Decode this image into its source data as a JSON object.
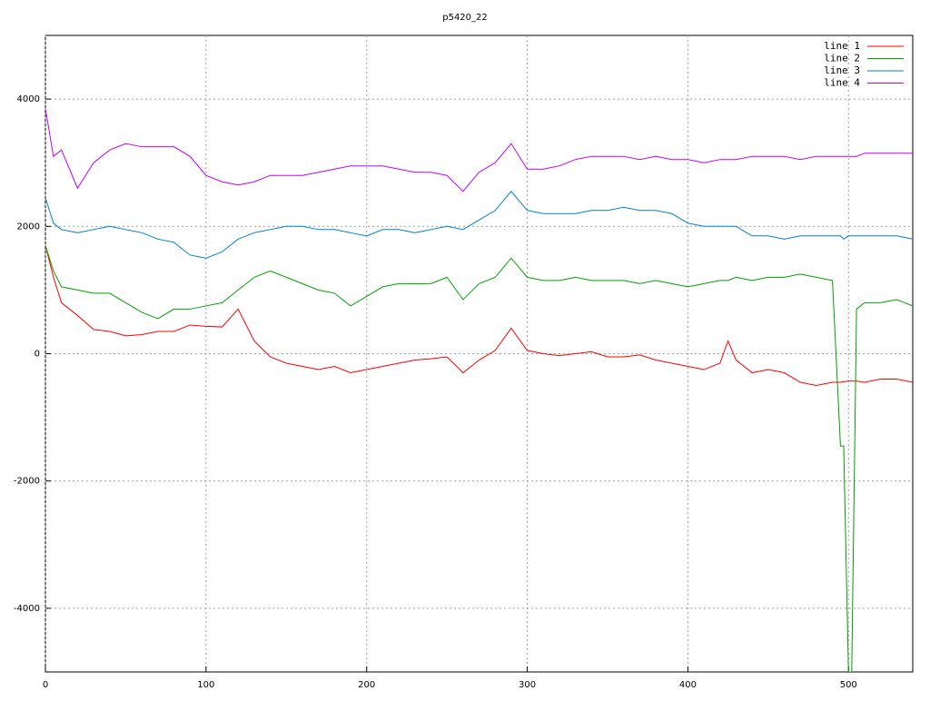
{
  "chart_data": {
    "type": "line",
    "title": "p5420_22",
    "x": [
      0,
      5,
      10,
      20,
      30,
      40,
      50,
      60,
      70,
      80,
      90,
      100,
      110,
      120,
      130,
      140,
      150,
      160,
      170,
      180,
      190,
      200,
      210,
      220,
      230,
      240,
      250,
      260,
      270,
      280,
      290,
      300,
      310,
      320,
      330,
      340,
      350,
      360,
      370,
      380,
      390,
      400,
      410,
      420,
      425,
      430,
      440,
      450,
      460,
      470,
      480,
      490,
      495,
      497,
      500,
      502,
      505,
      510,
      520,
      530,
      540
    ],
    "series": [
      {
        "name": "line 1",
        "color": "#ff0000",
        "values": [
          1700,
          1200,
          800,
          600,
          380,
          350,
          280,
          300,
          350,
          350,
          450,
          430,
          420,
          700,
          200,
          -50,
          -150,
          -200,
          -250,
          -200,
          -300,
          -250,
          -200,
          -150,
          -100,
          -80,
          -50,
          -300,
          -100,
          50,
          400,
          50,
          0,
          -30,
          0,
          30,
          -50,
          -50,
          -20,
          -100,
          -150,
          -200,
          -250,
          -150,
          200,
          -100,
          -300,
          -250,
          -300,
          -450,
          -500,
          -450,
          -450,
          -440,
          -430,
          -430,
          -430,
          -450,
          -400,
          -400,
          -450
        ]
      },
      {
        "name": "line 2",
        "color": "#00a000",
        "values": [
          1700,
          1300,
          1050,
          1000,
          950,
          950,
          800,
          650,
          550,
          700,
          700,
          750,
          800,
          1000,
          1200,
          1300,
          1200,
          1100,
          1000,
          950,
          750,
          900,
          1050,
          1100,
          1100,
          1100,
          1200,
          850,
          1100,
          1200,
          1500,
          1200,
          1150,
          1150,
          1200,
          1150,
          1150,
          1150,
          1100,
          1150,
          1100,
          1050,
          1100,
          1150,
          1150,
          1200,
          1150,
          1200,
          1200,
          1250,
          1200,
          1150,
          -1450,
          -1450,
          -5000,
          -5000,
          700,
          800,
          800,
          850,
          750
        ]
      },
      {
        "name": "line 3",
        "color": "#0080d0",
        "values": [
          2450,
          2050,
          1950,
          1900,
          1950,
          2000,
          1950,
          1900,
          1800,
          1750,
          1550,
          1500,
          1600,
          1800,
          1900,
          1950,
          2000,
          2000,
          1950,
          1950,
          1900,
          1850,
          1950,
          1950,
          1900,
          1950,
          2000,
          1950,
          2100,
          2250,
          2550,
          2250,
          2200,
          2200,
          2200,
          2250,
          2250,
          2300,
          2250,
          2250,
          2200,
          2050,
          2000,
          2000,
          2000,
          2000,
          1850,
          1850,
          1800,
          1850,
          1850,
          1850,
          1850,
          1800,
          1850,
          1850,
          1850,
          1850,
          1850,
          1850,
          1800
        ]
      },
      {
        "name": "line 4",
        "color": "#c000ff",
        "values": [
          3850,
          3100,
          3200,
          2600,
          3000,
          3200,
          3300,
          3250,
          3250,
          3250,
          3100,
          2800,
          2700,
          2650,
          2700,
          2800,
          2800,
          2800,
          2850,
          2900,
          2950,
          2950,
          2950,
          2900,
          2850,
          2850,
          2800,
          2550,
          2850,
          3000,
          3300,
          2900,
          2900,
          2950,
          3050,
          3100,
          3100,
          3100,
          3050,
          3100,
          3050,
          3050,
          3000,
          3050,
          3050,
          3050,
          3100,
          3100,
          3100,
          3050,
          3100,
          3100,
          3100,
          3100,
          3100,
          3100,
          3100,
          3150,
          3150,
          3150,
          3150
        ]
      }
    ],
    "xlim": [
      0,
      540
    ],
    "ylim": [
      -5000,
      5000
    ],
    "xticks": [
      0,
      100,
      200,
      300,
      400,
      500
    ],
    "yticks": [
      -4000,
      -2000,
      0,
      2000,
      4000
    ],
    "grid": true,
    "legend": "upper right"
  }
}
